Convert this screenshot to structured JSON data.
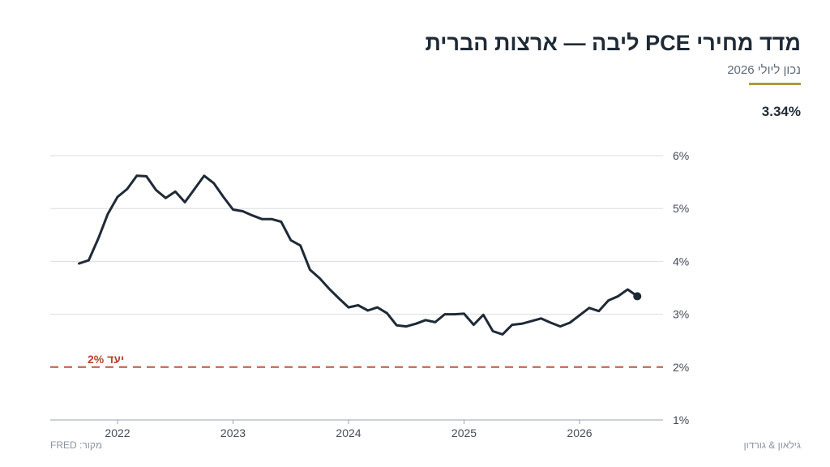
{
  "header": {
    "title": "מדד מחירי PCE ליבה — ארצות הברית",
    "subtitle": "נכון ליולי 2026",
    "latest_value": "3.34%"
  },
  "footer": {
    "source": "מקור: FRED",
    "brand": "גילאון & גורדון"
  },
  "colors": {
    "line": "#1f2a37",
    "target": "#c0563d",
    "accent": "#b09a3a",
    "grid": "#d9dde2"
  },
  "chart_data": {
    "type": "line",
    "ylim": [
      1,
      6
    ],
    "yticks": [
      "1%",
      "2%",
      "3%",
      "4%",
      "5%",
      "6%"
    ],
    "xticks": [
      "2022",
      "2023",
      "2024",
      "2025",
      "2026"
    ],
    "grid": true,
    "target": {
      "value": 2,
      "label": "יעד 2%"
    },
    "series": [
      {
        "x": [
          "2021-09",
          "2021-10",
          "2021-11",
          "2021-12",
          "2022-01",
          "2022-02",
          "2022-03",
          "2022-04",
          "2022-05",
          "2022-06",
          "2022-07",
          "2022-08",
          "2022-09",
          "2022-10",
          "2022-11",
          "2022-12",
          "2023-01",
          "2023-02",
          "2023-03",
          "2023-04",
          "2023-05",
          "2023-06",
          "2023-07",
          "2023-08",
          "2023-09",
          "2023-10",
          "2023-11",
          "2023-12",
          "2024-01",
          "2024-02",
          "2024-03",
          "2024-04",
          "2024-05",
          "2024-06",
          "2024-07",
          "2024-08",
          "2024-09",
          "2024-10",
          "2024-11",
          "2024-12",
          "2025-01",
          "2025-02",
          "2025-03",
          "2025-04",
          "2025-05",
          "2025-06",
          "2025-07",
          "2025-08",
          "2025-09",
          "2025-10",
          "2025-11",
          "2025-12",
          "2026-01",
          "2026-02",
          "2026-03",
          "2026-04",
          "2026-05",
          "2026-06",
          "2026-07"
        ],
        "y": [
          3.96,
          4.02,
          4.43,
          4.9,
          5.22,
          5.37,
          5.62,
          5.61,
          5.35,
          5.2,
          5.32,
          5.12,
          5.37,
          5.62,
          5.48,
          5.22,
          4.98,
          4.95,
          4.87,
          4.8,
          4.8,
          4.75,
          4.4,
          4.3,
          3.84,
          3.68,
          3.48,
          3.3,
          3.13,
          3.17,
          3.07,
          3.13,
          3.02,
          2.79,
          2.77,
          2.82,
          2.89,
          2.85,
          3.0,
          3.0,
          3.01,
          2.8,
          2.99,
          2.68,
          2.62,
          2.8,
          2.82,
          2.87,
          2.92,
          2.84,
          2.77,
          2.84,
          2.98,
          3.12,
          3.06,
          3.26,
          3.34,
          3.47,
          3.34
        ]
      }
    ]
  }
}
